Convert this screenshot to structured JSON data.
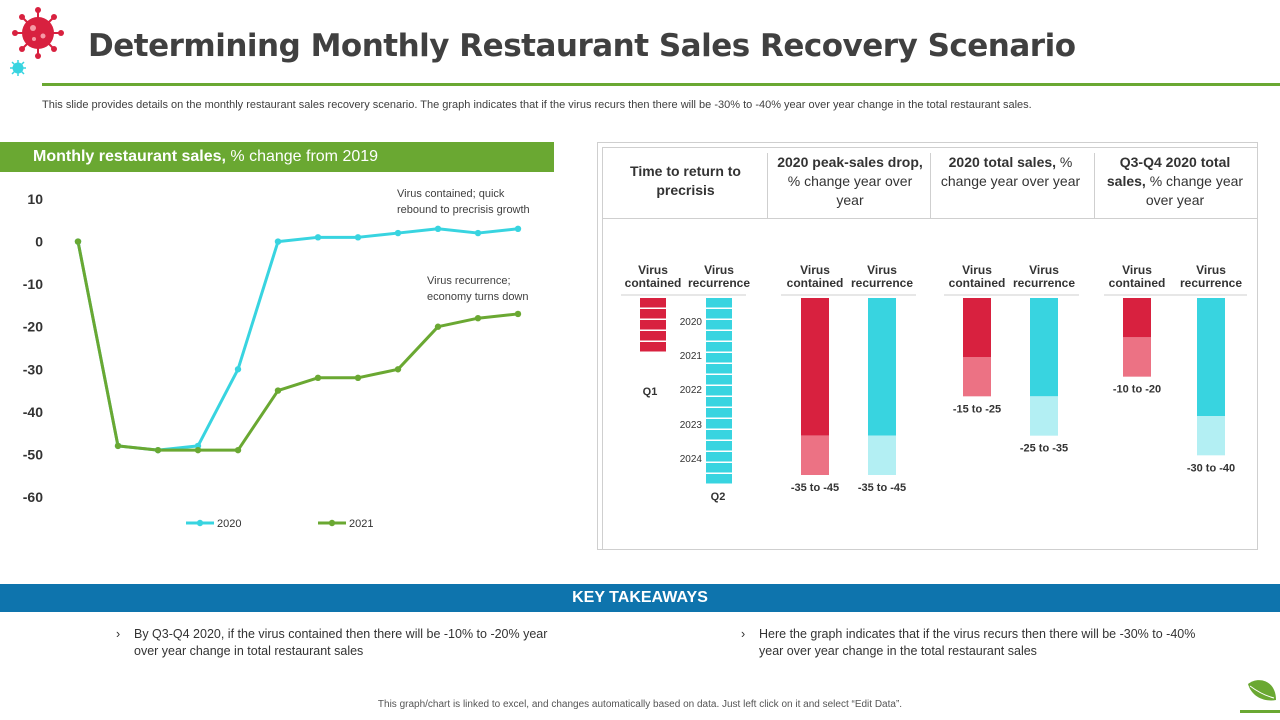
{
  "title": "Determining Monthly Restaurant Sales Recovery Scenario",
  "subtitle": "This slide provides details on the monthly restaurant sales recovery scenario. The graph indicates that if the virus recurs then there  will be -30% to -40%  year over year change in the total restaurant sales.",
  "line_chart_header": {
    "bold": "Monthly restaurant sales,",
    "normal": " % change from 2019"
  },
  "panel_headers": {
    "col1": "Time to return to precrisis",
    "col2_bold": "2020 peak-sales drop,",
    "col2_rest": " % change year over year",
    "col3_bold": "2020 total sales,",
    "col3_rest": " % change year over year",
    "col4_bold": "Q3-Q4 2020 total sales,",
    "col4_rest": " % change year over year"
  },
  "colors": {
    "green": "#6aa832",
    "cyan": "#38d4e0",
    "cyan_light": "#b3eff3",
    "red": "#d8213f",
    "red_light": "#ec7284",
    "blue": "#0e74ad"
  },
  "chart_data": [
    {
      "type": "line",
      "title": "Monthly restaurant sales, % change from 2019",
      "ylim": [
        -60,
        10
      ],
      "yticks": [
        10,
        0,
        -10,
        -20,
        -30,
        -40,
        -50,
        -60
      ],
      "x": [
        1,
        2,
        3,
        4,
        5,
        6,
        7,
        8,
        9,
        10,
        11,
        12
      ],
      "series": [
        {
          "name": "2020",
          "color": "#38d4e0",
          "values": [
            0,
            -48,
            -49,
            -48,
            -30,
            0,
            1,
            1,
            2,
            3,
            2,
            3
          ]
        },
        {
          "name": "2021",
          "color": "#6aa832",
          "values": [
            0,
            -48,
            -49,
            -49,
            -49,
            -35,
            -32,
            -32,
            -30,
            -20,
            -18,
            -17
          ]
        }
      ],
      "annotations": [
        {
          "text_lines": [
            "Virus contained; quick",
            "rebound to precrisis growth"
          ],
          "anchor_series": "2020"
        },
        {
          "text_lines": [
            "Virus recurrence;",
            "economy turns down"
          ],
          "anchor_series": "2021"
        }
      ],
      "legend": "bottom"
    },
    {
      "type": "bar",
      "title": "Time to return to precrisis",
      "categories": [
        "Virus contained",
        "Virus recurrence"
      ],
      "category_lines": [
        [
          "Virus",
          "contained"
        ],
        [
          "Virus",
          "recurrence"
        ]
      ],
      "units": "quarters",
      "values": [
        1,
        6
      ],
      "year_ticks": [
        "2020",
        "2021",
        "2022",
        "2023",
        "2024"
      ],
      "labels": [
        "Q1",
        "Q2"
      ]
    },
    {
      "type": "bar",
      "title": "2020 peak-sales drop, % change year over year",
      "categories": [
        "Virus contained",
        "Virus recurrence"
      ],
      "category_lines": [
        [
          "Virus",
          "contained"
        ],
        [
          "Virus",
          "recurrence"
        ]
      ],
      "ranges": [
        [
          -35,
          -45
        ],
        [
          -35,
          -45
        ]
      ],
      "labels": [
        "-35 to -45",
        "-35 to -45"
      ]
    },
    {
      "type": "bar",
      "title": "2020 total sales, % change year over year",
      "categories": [
        "Virus contained",
        "Virus recurrence"
      ],
      "category_lines": [
        [
          "Virus",
          "contained"
        ],
        [
          "Virus",
          "recurrence"
        ]
      ],
      "ranges": [
        [
          -15,
          -25
        ],
        [
          -25,
          -35
        ]
      ],
      "labels": [
        "-15 to -25",
        "-25 to -35"
      ]
    },
    {
      "type": "bar",
      "title": "Q3-Q4 2020 total sales, % change year over year",
      "categories": [
        "Virus contained",
        "Virus recurrence"
      ],
      "category_lines": [
        [
          "Virus",
          "contained"
        ],
        [
          "Virus",
          "recurrence"
        ]
      ],
      "ranges": [
        [
          -10,
          -20
        ],
        [
          -30,
          -40
        ]
      ],
      "labels": [
        "-10 to -20",
        "-30 to -40"
      ]
    }
  ],
  "key_takeaways": {
    "title": "KEY TAKEAWAYS",
    "chevron": "›",
    "left": "By  Q3-Q4  2020, if the virus contained then there will be -10% to -20% year over year change in total restaurant sales",
    "right": "Here the graph indicates that if the virus recurs then there will be -30% to -40% year over year change in the total restaurant sales"
  },
  "footer": "This graph/chart is linked to excel, and changes automatically based on data. Just left click on it and select “Edit Data”.",
  "icons": {
    "logo": "virus-icon",
    "corner": "leaf-icon"
  }
}
